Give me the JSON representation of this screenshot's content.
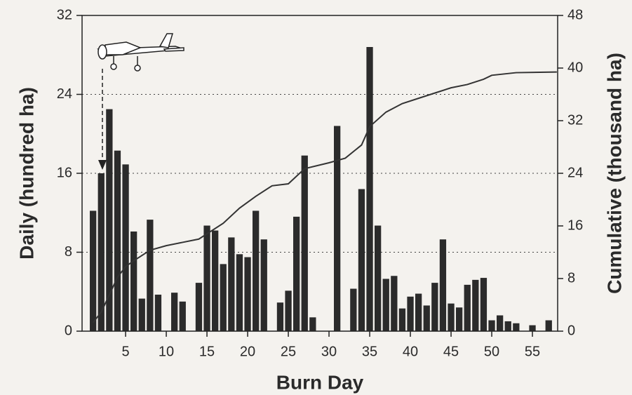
{
  "chart_data": {
    "type": "bar",
    "x_label": "Burn Day",
    "y_label": "Daily  (hundred ha)",
    "y2_label": "Cumulative  (thousand ha)",
    "xlim": [
      -0.35,
      58.1
    ],
    "xticks": [
      5,
      10,
      15,
      20,
      25,
      30,
      35,
      40,
      45,
      50,
      55
    ],
    "ylim": [
      0,
      32
    ],
    "yticks": [
      0,
      8,
      16,
      24,
      32
    ],
    "y2lim": [
      0,
      48
    ],
    "y2ticks": [
      0,
      8,
      16,
      24,
      32,
      40,
      48
    ],
    "grid": true,
    "series": [
      {
        "type": "bar",
        "color": "#2b2b2b",
        "x": [
          1,
          2,
          3,
          4,
          5,
          6,
          7,
          8,
          9,
          11,
          12,
          14,
          15,
          16,
          17,
          18,
          19,
          20,
          21,
          22,
          24,
          25,
          26,
          27,
          28,
          31,
          33,
          34,
          35,
          36,
          37,
          38,
          39,
          40,
          41,
          42,
          43,
          44,
          45,
          46,
          47,
          48,
          49,
          50,
          51,
          52,
          53,
          55,
          57
        ],
        "values": [
          12.2,
          16,
          22.5,
          18.3,
          16.9,
          10.1,
          3.3,
          11.3,
          3.7,
          3.9,
          3.0,
          4.9,
          10.7,
          10.2,
          6.8,
          9.5,
          7.8,
          7.5,
          12.2,
          9.3,
          2.9,
          4.1,
          11.6,
          17.8,
          1.4,
          20.8,
          4.3,
          14.4,
          28.8,
          10.7,
          5.3,
          5.6,
          2.3,
          3.5,
          3.8,
          2.6,
          4.9,
          9.3,
          2.8,
          2.4,
          4.7,
          5.2,
          5.4,
          1.1,
          1.6,
          1.0,
          0.8,
          0.6,
          1.1
        ]
      },
      {
        "type": "line",
        "axis": "y2",
        "color": "#333333",
        "x": [
          1,
          2,
          3,
          4,
          5,
          6,
          8,
          10,
          12,
          14,
          15,
          17,
          19,
          21,
          23,
          25,
          27,
          30,
          32,
          34,
          35,
          37,
          39,
          41,
          43,
          45,
          47,
          49,
          50,
          53,
          58
        ],
        "values": [
          1.3,
          2.9,
          5.5,
          8.2,
          9.8,
          10.7,
          12.3,
          13.0,
          13.5,
          14.0,
          14.8,
          16.4,
          18.7,
          20.5,
          22.1,
          22.4,
          24.7,
          25.6,
          26.3,
          28.3,
          31.1,
          33.3,
          34.6,
          35.4,
          36.2,
          37.0,
          37.5,
          38.3,
          38.9,
          39.3,
          39.4
        ]
      }
    ]
  }
}
